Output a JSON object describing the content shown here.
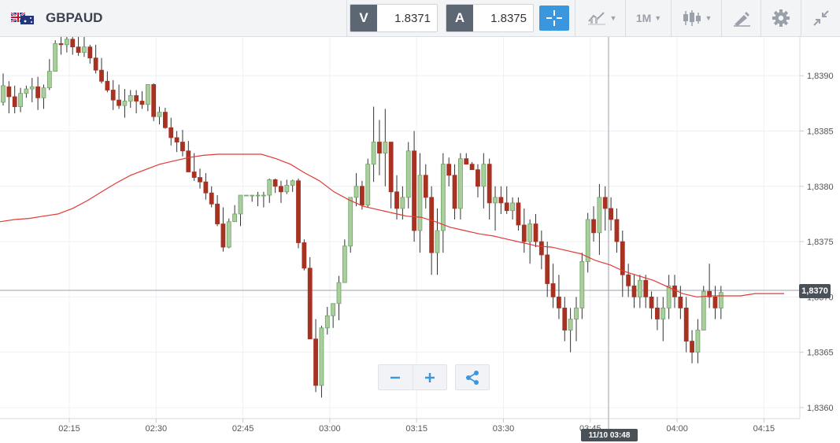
{
  "header": {
    "symbol": "GBPAUD",
    "flag_icon": "gb-au-flag-icon",
    "sell_label": "V",
    "sell_price": "1.8371",
    "buy_label": "A",
    "buy_price": "1.8375",
    "timeframe_label": "1M",
    "icons": [
      "crosshair-icon",
      "chart-type-icon",
      "candlestick-icon",
      "drawing-pen-icon",
      "gear-icon",
      "collapse-icon"
    ]
  },
  "chart": {
    "current_price": "1,8370",
    "cursor_time": "11/10 03:48",
    "colors": {
      "bull": "#6fa26a",
      "bull_fill": "#aacf9c",
      "bear": "#a83222",
      "ma": "#e23a35",
      "accent": "#3a96dd"
    }
  },
  "chart_data": {
    "type": "candlestick",
    "symbol": "GBPAUD",
    "interval": "1M",
    "ylim": [
      1.8359,
      1.83935
    ],
    "y_ticks": [
      "1,8390",
      "1,8385",
      "1,8380",
      "1,8375",
      "1,8370",
      "1,8365",
      "1,8360"
    ],
    "x_ticks": [
      "02:15",
      "02:30",
      "02:45",
      "03:00",
      "03:15",
      "03:30",
      "03:45",
      "04:00",
      "04:15"
    ],
    "candles_ohlc": [
      [
        1.83876,
        1.83902,
        1.83873,
        1.83891
      ],
      [
        1.8389,
        1.83895,
        1.83866,
        1.83881
      ],
      [
        1.83881,
        1.83891,
        1.83866,
        1.83872
      ],
      [
        1.83872,
        1.83889,
        1.83867,
        1.83884
      ],
      [
        1.83884,
        1.83891,
        1.8388,
        1.83888
      ],
      [
        1.83888,
        1.83898,
        1.83876,
        1.8389
      ],
      [
        1.8389,
        1.83899,
        1.83869,
        1.8388
      ],
      [
        1.8388,
        1.83892,
        1.8387,
        1.83889
      ],
      [
        1.83889,
        1.83915,
        1.83887,
        1.83904
      ],
      [
        1.83904,
        1.83932,
        1.83904,
        1.83929
      ],
      [
        1.83929,
        1.83935,
        1.83919,
        1.83928
      ],
      [
        1.83928,
        1.83935,
        1.83921,
        1.83933
      ],
      [
        1.83933,
        1.83935,
        1.83919,
        1.83926
      ],
      [
        1.83926,
        1.83935,
        1.83918,
        1.83921
      ],
      [
        1.83921,
        1.83935,
        1.83917,
        1.83926
      ],
      [
        1.83926,
        1.83928,
        1.83911,
        1.83916
      ],
      [
        1.83916,
        1.83928,
        1.83902,
        1.83905
      ],
      [
        1.83905,
        1.83916,
        1.83893,
        1.83895
      ],
      [
        1.83895,
        1.83904,
        1.83885,
        1.83887
      ],
      [
        1.83887,
        1.83896,
        1.83869,
        1.83878
      ],
      [
        1.83878,
        1.83892,
        1.8387,
        1.83873
      ],
      [
        1.83873,
        1.83888,
        1.83862,
        1.83877
      ],
      [
        1.83877,
        1.83887,
        1.83871,
        1.83882
      ],
      [
        1.83882,
        1.83887,
        1.83866,
        1.83877
      ],
      [
        1.83877,
        1.83886,
        1.8387,
        1.83874
      ],
      [
        1.83874,
        1.83892,
        1.83868,
        1.83892
      ],
      [
        1.83892,
        1.83893,
        1.83859,
        1.83863
      ],
      [
        1.83863,
        1.83872,
        1.83856,
        1.83867
      ],
      [
        1.83867,
        1.83871,
        1.83852,
        1.83853
      ],
      [
        1.83853,
        1.83862,
        1.83837,
        1.83844
      ],
      [
        1.83844,
        1.8385,
        1.83831,
        1.8384
      ],
      [
        1.8384,
        1.83851,
        1.83827,
        1.83832
      ],
      [
        1.83832,
        1.83841,
        1.83817,
        1.83813
      ],
      [
        1.83813,
        1.8383,
        1.83805,
        1.83808
      ],
      [
        1.83808,
        1.83816,
        1.83798,
        1.83804
      ],
      [
        1.83804,
        1.83812,
        1.83788,
        1.83794
      ],
      [
        1.83794,
        1.838,
        1.83781,
        1.83784
      ],
      [
        1.83784,
        1.83792,
        1.83764,
        1.83766
      ],
      [
        1.83766,
        1.83781,
        1.83741,
        1.83745
      ],
      [
        1.83745,
        1.83771,
        1.83744,
        1.83768
      ],
      [
        1.83768,
        1.83783,
        1.83768,
        1.83775
      ],
      [
        1.83775,
        1.83792,
        1.83764,
        1.83792
      ],
      [
        1.83792,
        1.83792,
        1.83792,
        1.83792
      ],
      [
        1.83792,
        1.83792,
        1.83786,
        1.83792
      ],
      [
        1.83792,
        1.83795,
        1.83782,
        1.83792
      ],
      [
        1.83792,
        1.83795,
        1.83781,
        1.83792
      ],
      [
        1.83792,
        1.83807,
        1.83785,
        1.83806
      ],
      [
        1.83806,
        1.83807,
        1.83794,
        1.838
      ],
      [
        1.838,
        1.83805,
        1.83785,
        1.83795
      ],
      [
        1.83795,
        1.83806,
        1.83793,
        1.83801
      ],
      [
        1.83801,
        1.83806,
        1.83795,
        1.83805
      ],
      [
        1.83805,
        1.83807,
        1.83744,
        1.83749
      ],
      [
        1.83749,
        1.83752,
        1.83724,
        1.83726
      ],
      [
        1.83726,
        1.83736,
        1.83675,
        1.83662
      ],
      [
        1.83662,
        1.8368,
        1.83614,
        1.8362
      ],
      [
        1.8362,
        1.83674,
        1.83609,
        1.83672
      ],
      [
        1.83672,
        1.83691,
        1.83666,
        1.83683
      ],
      [
        1.83683,
        1.83687,
        1.83672,
        1.83694
      ],
      [
        1.83694,
        1.83719,
        1.83679,
        1.83713
      ],
      [
        1.83713,
        1.83752,
        1.83719,
        1.83746
      ],
      [
        1.83746,
        1.83776,
        1.8374,
        1.8379
      ],
      [
        1.8379,
        1.83812,
        1.83782,
        1.838
      ],
      [
        1.838,
        1.83805,
        1.83779,
        1.83783
      ],
      [
        1.83783,
        1.83825,
        1.83781,
        1.8382
      ],
      [
        1.8382,
        1.83872,
        1.83804,
        1.8384
      ],
      [
        1.8384,
        1.8386,
        1.8381,
        1.8383
      ],
      [
        1.8383,
        1.8387,
        1.838,
        1.8384
      ],
      [
        1.8384,
        1.8384,
        1.8378,
        1.83795
      ],
      [
        1.83795,
        1.8381,
        1.8377,
        1.8378
      ],
      [
        1.8378,
        1.838,
        1.8377,
        1.8379
      ],
      [
        1.8379,
        1.8384,
        1.8378,
        1.83832
      ],
      [
        1.83832,
        1.8385,
        1.8375,
        1.8376
      ],
      [
        1.8376,
        1.8383,
        1.8374,
        1.8381
      ],
      [
        1.8381,
        1.8382,
        1.8378,
        1.8379
      ],
      [
        1.8379,
        1.838,
        1.8372,
        1.8374
      ],
      [
        1.8374,
        1.8378,
        1.8372,
        1.8376
      ],
      [
        1.8376,
        1.8383,
        1.8374,
        1.8382
      ],
      [
        1.8382,
        1.83826,
        1.838,
        1.8381
      ],
      [
        1.8381,
        1.8382,
        1.8377,
        1.8378
      ],
      [
        1.8378,
        1.8383,
        1.8377,
        1.83825
      ],
      [
        1.83825,
        1.8383,
        1.8382,
        1.8382
      ],
      [
        1.8382,
        1.83822,
        1.83815,
        1.83815
      ],
      [
        1.83815,
        1.8382,
        1.8379,
        1.838
      ],
      [
        1.838,
        1.8383,
        1.8378,
        1.8382
      ],
      [
        1.8382,
        1.83825,
        1.8377,
        1.83785
      ],
      [
        1.83785,
        1.838,
        1.8376,
        1.8379
      ],
      [
        1.8379,
        1.838,
        1.83775,
        1.83785
      ],
      [
        1.83785,
        1.838,
        1.83775,
        1.83778
      ],
      [
        1.83778,
        1.8379,
        1.8377,
        1.83785
      ],
      [
        1.83785,
        1.8379,
        1.8376,
        1.83765
      ],
      [
        1.83765,
        1.8378,
        1.8374,
        1.8375
      ],
      [
        1.8375,
        1.8377,
        1.8373,
        1.83766
      ],
      [
        1.83766,
        1.83775,
        1.83745,
        1.8375
      ],
      [
        1.8375,
        1.8376,
        1.83725,
        1.83738
      ],
      [
        1.83738,
        1.8375,
        1.837,
        1.83712
      ],
      [
        1.83712,
        1.8373,
        1.8369,
        1.837
      ],
      [
        1.837,
        1.8372,
        1.8368,
        1.8369
      ],
      [
        1.8369,
        1.837,
        1.8366,
        1.8367
      ],
      [
        1.8367,
        1.8369,
        1.8365,
        1.8368
      ],
      [
        1.8368,
        1.837,
        1.8366,
        1.8369
      ],
      [
        1.8369,
        1.8374,
        1.8368,
        1.83732
      ],
      [
        1.83732,
        1.83776,
        1.83722,
        1.8377
      ],
      [
        1.8377,
        1.83782,
        1.8375,
        1.83758
      ],
      [
        1.83758,
        1.83802,
        1.83738,
        1.8379
      ],
      [
        1.8379,
        1.838,
        1.8376,
        1.8378
      ],
      [
        1.8378,
        1.8379,
        1.8376,
        1.8377
      ],
      [
        1.8377,
        1.8378,
        1.8374,
        1.8375
      ],
      [
        1.8375,
        1.8376,
        1.837,
        1.8372
      ],
      [
        1.8372,
        1.8373,
        1.837,
        1.8371
      ],
      [
        1.8371,
        1.8372,
        1.8369,
        1.837
      ],
      [
        1.837,
        1.8372,
        1.8369,
        1.83715
      ],
      [
        1.83715,
        1.8372,
        1.8369,
        1.837
      ],
      [
        1.837,
        1.83705,
        1.8368,
        1.8369
      ],
      [
        1.8369,
        1.837,
        1.8367,
        1.8368
      ],
      [
        1.8368,
        1.837,
        1.8366,
        1.8369
      ],
      [
        1.8369,
        1.8372,
        1.8368,
        1.8371
      ],
      [
        1.8371,
        1.8372,
        1.8369,
        1.837
      ],
      [
        1.837,
        1.8371,
        1.8368,
        1.8369
      ],
      [
        1.8369,
        1.837,
        1.8365,
        1.8366
      ],
      [
        1.8366,
        1.8367,
        1.8364,
        1.8365
      ],
      [
        1.8365,
        1.8368,
        1.8364,
        1.8367
      ],
      [
        1.8367,
        1.8371,
        1.8367,
        1.83705
      ],
      [
        1.83705,
        1.8373,
        1.8369,
        1.837
      ],
      [
        1.837,
        1.8371,
        1.8368,
        1.8369
      ],
      [
        1.8369,
        1.8371,
        1.8368,
        1.83704
      ]
    ],
    "ma_series": [
      1.83768,
      1.8377,
      1.83771,
      1.83773,
      1.83775,
      1.8378,
      1.83787,
      1.83795,
      1.83803,
      1.8381,
      1.83815,
      1.8382,
      1.83823,
      1.83826,
      1.83828,
      1.83829,
      1.83829,
      1.83829,
      1.83829,
      1.83825,
      1.8382,
      1.83812,
      1.83805,
      1.83795,
      1.83788,
      1.83782,
      1.83779,
      1.83776,
      1.83773,
      1.83772,
      1.83768,
      1.83763,
      1.8376,
      1.83757,
      1.83755,
      1.83752,
      1.83749,
      1.83746,
      1.83745,
      1.83742,
      1.83739,
      1.83733,
      1.83729,
      1.83723,
      1.83719,
      1.83715,
      1.83709,
      1.83703,
      1.837,
      1.83701,
      1.83701,
      1.83701,
      1.83703,
      1.83703,
      1.83703
    ]
  }
}
